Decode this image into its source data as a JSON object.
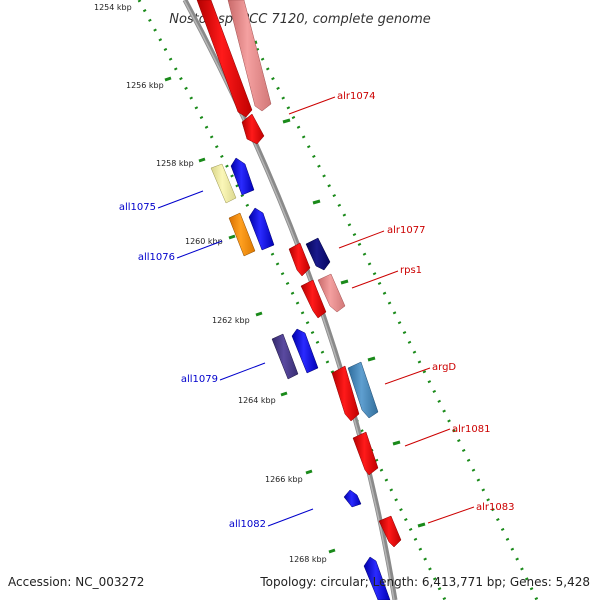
{
  "title": "Nostoc sp. PCC 7120, complete genome",
  "footer": {
    "accession": "Accession: NC_003272",
    "summary": "Topology: circular; Length: 6,413,771 bp; Genes: 5,428"
  },
  "colors": {
    "forward": "#cc0000",
    "reverse": "#0000cc",
    "tick": "#1a8a1a",
    "backbone": "#8a8a8a"
  },
  "kbp_labels": [
    "1254 kbp",
    "1256 kbp",
    "1258 kbp",
    "1260 kbp",
    "1262 kbp",
    "1264 kbp",
    "1266 kbp",
    "1268 kbp"
  ],
  "gene_labels": {
    "alr1074": "alr1074",
    "alr1077": "alr1077",
    "rps1": "rps1",
    "argD": "argD",
    "alr1081": "alr1081",
    "alr1083": "alr1083",
    "all1075": "all1075",
    "all1076": "all1076",
    "all1079": "all1079",
    "all1082": "all1082"
  }
}
